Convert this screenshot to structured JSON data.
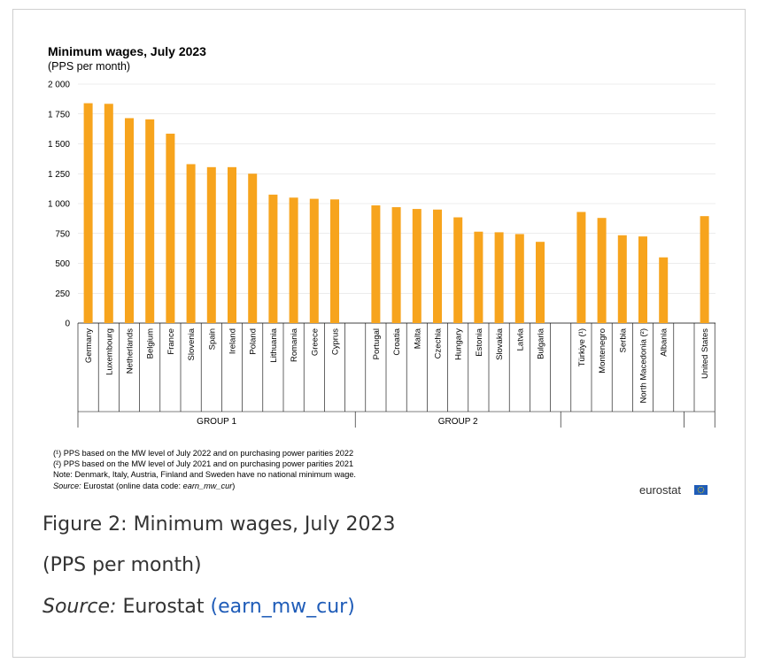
{
  "chart_data": {
    "type": "bar",
    "title": "Minimum wages, July 2023",
    "subtitle": "(PPS per month)",
    "ylim": [
      0,
      2000
    ],
    "yticks": [
      0,
      250,
      500,
      750,
      1000,
      1250,
      1500,
      1750,
      2000
    ],
    "ytick_labels": [
      "0",
      "250",
      "500",
      "750",
      "1 000",
      "1 250",
      "1 500",
      "1 750",
      "2 000"
    ],
    "grid": true,
    "bar_color": "#F7A41D",
    "groups": [
      {
        "label": "GROUP 1",
        "categories": [
          "Germany",
          "Luxembourg",
          "Netherlands",
          "Belgium",
          "France",
          "Slovenia",
          "Spain",
          "Ireland",
          "Poland",
          "Lithuania",
          "Romania",
          "Greece",
          "Cyprus"
        ],
        "values": [
          1840,
          1835,
          1715,
          1705,
          1585,
          1330,
          1305,
          1305,
          1250,
          1075,
          1050,
          1040,
          1035
        ]
      },
      {
        "label": "GROUP 2",
        "categories": [
          "Portugal",
          "Croatia",
          "Malta",
          "Czechia",
          "Hungary",
          "Estonia",
          "Slovakia",
          "Latvia",
          "Bulgaria"
        ],
        "values": [
          985,
          970,
          955,
          950,
          885,
          765,
          760,
          745,
          680
        ]
      },
      {
        "label": "",
        "categories": [
          "Türkiye (¹)",
          "Montenegro",
          "Serbia",
          "North Macedonia (²)",
          "Albania"
        ],
        "values": [
          930,
          880,
          735,
          725,
          550
        ]
      },
      {
        "label": "",
        "categories": [
          "United States"
        ],
        "values": [
          895
        ]
      }
    ],
    "notes": [
      "(¹) PPS based on the MW level of July 2022 and on purchasing  power parities 2022",
      "(²) PPS based on the MW level of July 2021 and on purchasing  power parities 2021",
      "Note: Denmark,  Italy, Austria, Finland and Sweden have no national minimum  wage."
    ],
    "source_label": "Source:",
    "source_text": " Eurostat (online data code: ",
    "source_code": "earn_mw_cur",
    "source_close": ")",
    "logo_text": "eurostat"
  },
  "caption": {
    "title": "Figure 2: Minimum wages, July 2023",
    "subtitle": "(PPS per month)",
    "source_label": "Source:",
    "source_text": " Eurostat ",
    "source_link": "(earn_mw_cur)"
  },
  "colors": {
    "bar": "#F7A41D",
    "link": "#1f5cb8",
    "eu_flag": "#1f5cb8",
    "eu_stars": "#ffdd00"
  }
}
